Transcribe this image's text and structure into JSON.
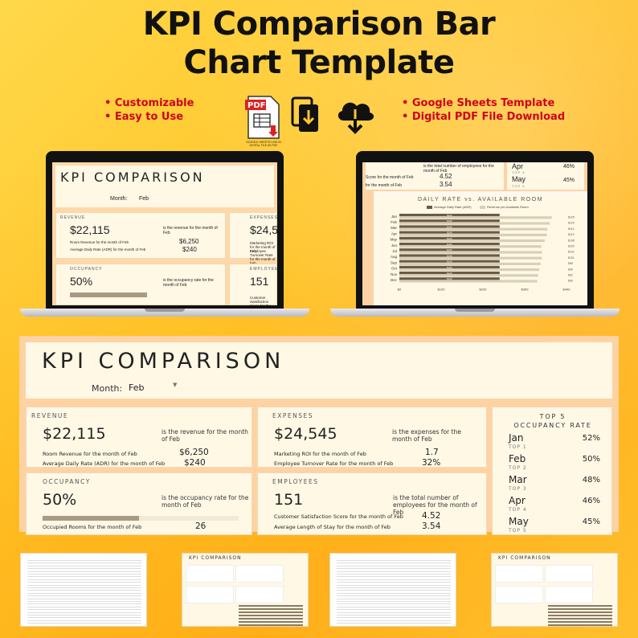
{
  "headline": {
    "line1": "KPI Comparison Bar",
    "line2": "Chart Template"
  },
  "features_left": [
    "Customizable",
    "Easy to Use"
  ],
  "features_right": [
    "Google Sheets Template",
    "Digital PDF File Download"
  ],
  "icons": {
    "pdf": "PDF",
    "pdf_caption": "GOOGLE SHEETS LINK IN DIGITAL FILE AS PDF"
  },
  "dashboard": {
    "title": "KPI COMPARISON",
    "month_label": "Month:",
    "month_value": "Feb",
    "revenue": {
      "label": "REVENUE",
      "value": "$22,115",
      "desc": "is the revenue for the month of Feb",
      "sub1": "Room Revenue for the month of Feb",
      "sub1_value": "$6,250",
      "sub2": "Average Daily Rate (ADR) for the month of Feb",
      "sub2_value": "$240"
    },
    "expenses": {
      "label": "EXPENSES",
      "value": "$24,545",
      "desc": "is the expenses for the month of Feb",
      "sub1": "Marketing ROI for the month of Feb",
      "sub1_value": "1.7",
      "sub2": "Employee Turnover Rate for the month of Feb",
      "sub2_value": "32%"
    },
    "occupancy": {
      "label": "OCCUPANCY",
      "value": "50%",
      "desc": "is the occupancy rate for the month of Feb",
      "bar_fraction": 0.5,
      "sub1": "Occupied Rooms for the month of Feb",
      "sub1_value": "26"
    },
    "employees": {
      "label": "EMPLOYEES",
      "value": "151",
      "desc": "is the total number of employees for the month of Feb",
      "sub1": "Customer Satisfaction Score for the month of Feb",
      "sub1_value": "4.52",
      "sub2": "Average Length of Stay for the month of Feb",
      "sub2_value": "3.54"
    },
    "top5": {
      "title1": "TOP 5",
      "title2": "OCCUPANCY RATE",
      "rows": [
        {
          "month": "Jan",
          "tag": "TOP 1",
          "pct": "52%"
        },
        {
          "month": "Feb",
          "tag": "TOP 2",
          "pct": "50%"
        },
        {
          "month": "Mar",
          "tag": "TOP 3",
          "pct": "48%"
        },
        {
          "month": "Apr",
          "tag": "TOP 4",
          "pct": "46%"
        },
        {
          "month": "May",
          "tag": "TOP 5",
          "pct": "45%"
        }
      ]
    }
  },
  "laptop_right": {
    "chart_title": "DAILY RATE vs. AVAILABLE ROOM",
    "legend": [
      "Average Daily Rate (ADR)",
      "Revenue per Available Room"
    ],
    "top_rows": [
      {
        "text": "is the total number of employees for the month of Feb"
      },
      {
        "text": "Score for the month of Feb",
        "value": "4.52"
      },
      {
        "text": "for the month of Feb",
        "value": "3.54"
      }
    ],
    "top5_partial": [
      {
        "month": "Apr",
        "tag": "TOP 4",
        "pct": "46%"
      },
      {
        "month": "May",
        "tag": "TOP 5",
        "pct": "45%"
      }
    ]
  },
  "chart_data": {
    "type": "bar",
    "title": "DAILY RATE vs. AVAILABLE ROOM",
    "categories": [
      "Jan",
      "Feb",
      "Mar",
      "Apr",
      "May",
      "Jun",
      "Jul",
      "Aug",
      "Sep",
      "Oct",
      "Nov",
      "Dec"
    ],
    "series": [
      {
        "name": "Average Daily Rate (ADR)",
        "values": [
          240,
          240,
          240,
          240,
          240,
          240,
          240,
          240,
          240,
          240,
          240,
          240
        ]
      },
      {
        "name": "Revenue per Available Room",
        "values": [
          125,
          120,
          114,
          113,
          108,
          100,
          101,
          101,
          98,
          95,
          92,
          90
        ]
      }
    ],
    "value_labels_adr": [
      "$240",
      "$240",
      "$240",
      "$240",
      "$240",
      "$240",
      "$240",
      "$240",
      "$240",
      "$240",
      "$240",
      "$240"
    ],
    "value_labels_revpar": [
      "$125",
      "$120",
      "$114",
      "$113",
      "$108",
      "$100",
      "$101",
      "$101",
      "$98",
      "$95",
      "$92",
      "$90"
    ],
    "xticks": [
      "$0",
      "$100",
      "$200",
      "$300",
      "$400"
    ],
    "xlim": [
      0,
      400
    ],
    "orientation": "horizontal",
    "colors": [
      "#6b5a45",
      "#d9cfb8"
    ]
  },
  "colors": {
    "accent_red": "#d0021b",
    "panel": "#fff8e5",
    "border": "#ffd2a3",
    "bar_fill": "#a89a84"
  }
}
